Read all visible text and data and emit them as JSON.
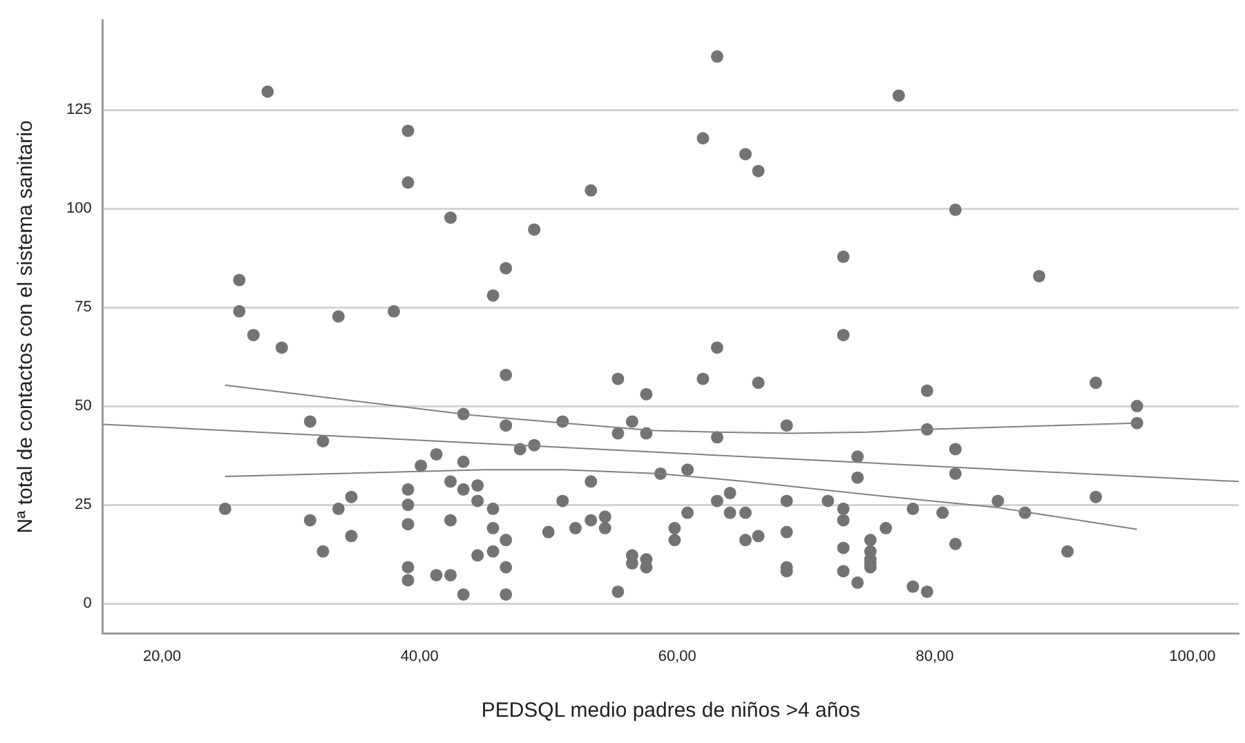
{
  "chart_data": {
    "type": "scatter",
    "xlabel": "PEDSQL medio padres de niños >4 años",
    "ylabel": "Nª total de contactos con el sistema sanitario",
    "xlim": [
      15.4,
      103.6
    ],
    "ylim": [
      -7.6,
      147.7
    ],
    "xticks": [
      {
        "value": 20,
        "label": "20,00"
      },
      {
        "value": 40,
        "label": "40,00"
      },
      {
        "value": 60,
        "label": "60,00"
      },
      {
        "value": 80,
        "label": "80,00"
      },
      {
        "value": 100,
        "label": "100,00"
      }
    ],
    "yticks": [
      0,
      25,
      50,
      75,
      100,
      125
    ],
    "grid": "y",
    "legend": false,
    "series": [
      {
        "marker": "circle",
        "color": "#737373",
        "x": [
          28.2,
          39.1,
          39.1,
          42.4,
          26.0,
          26.0,
          33.7,
          38.0,
          27.1,
          29.3,
          63.1,
          62.0,
          65.3,
          66.3,
          53.3,
          48.9,
          46.7,
          45.7,
          72.9,
          72.9,
          77.2,
          81.6,
          88.1,
          31.5,
          32.5,
          24.9,
          31.5,
          33.7,
          34.7,
          34.7,
          32.5,
          43.4,
          40.1,
          41.3,
          43.4,
          39.1,
          42.4,
          43.4,
          44.5,
          39.1,
          44.5,
          39.1,
          42.4,
          44.5,
          39.1,
          39.1,
          41.3,
          42.4,
          43.4,
          46.7,
          46.7,
          47.8,
          48.9,
          51.1,
          55.4,
          55.4,
          56.5,
          57.6,
          57.6,
          62.0,
          63.1,
          63.1,
          66.3,
          68.5,
          58.7,
          60.8,
          45.7,
          45.7,
          45.7,
          46.7,
          46.7,
          46.7,
          50.0,
          51.1,
          52.1,
          53.3,
          53.3,
          54.4,
          54.4,
          55.4,
          56.5,
          56.5,
          57.6,
          57.6,
          59.8,
          59.8,
          60.8,
          63.1,
          64.1,
          64.1,
          65.3,
          65.3,
          66.3,
          68.5,
          68.5,
          68.5,
          68.5,
          71.7,
          72.9,
          72.9,
          72.9,
          72.9,
          74.0,
          74.0,
          74.0,
          79.4,
          92.5,
          95.7,
          95.7,
          79.4,
          81.6,
          81.6,
          84.9,
          92.5,
          78.3,
          80.6,
          87.0,
          76.2,
          75.0,
          75.0,
          75.0,
          75.0,
          75.0,
          81.6,
          90.3,
          78.3,
          79.4
        ],
        "values": [
          129.6,
          119.7,
          106.6,
          97.7,
          81.9,
          74,
          72.7,
          74,
          68,
          64.8,
          138.5,
          117.8,
          113.8,
          109.5,
          104.6,
          94.7,
          84.9,
          78,
          87.8,
          68,
          128.6,
          99.7,
          82.9,
          46.1,
          41.1,
          24,
          21.1,
          24,
          27,
          17.1,
          13.2,
          48,
          34.9,
          37.8,
          35.9,
          28.9,
          30.9,
          28.9,
          29.9,
          25,
          26,
          20.1,
          21.1,
          12.2,
          9.2,
          5.9,
          7.2,
          7.2,
          2.3,
          57.9,
          45.1,
          39.1,
          40.1,
          46.1,
          56.9,
          43.1,
          46.1,
          53,
          43.1,
          56.9,
          64.8,
          42.1,
          55.9,
          45.1,
          32.9,
          33.9,
          24,
          19.1,
          13.2,
          16.1,
          9.2,
          2.3,
          18.1,
          26,
          19.1,
          30.9,
          21.1,
          22,
          19.1,
          3,
          12.2,
          10.2,
          11.2,
          9.2,
          19.1,
          16.1,
          23,
          26,
          28,
          23,
          23,
          16.1,
          17.1,
          26,
          18.1,
          9.2,
          8.2,
          26,
          24,
          21.1,
          14.1,
          8.2,
          37.2,
          31.9,
          5.3,
          53.9,
          55.9,
          50,
          45.7,
          44.1,
          39.1,
          32.9,
          26,
          27,
          24,
          23,
          23,
          19.1,
          16.1,
          13.2,
          11.2,
          10.2,
          9.2,
          15.1,
          13.2,
          4.3,
          3
        ]
      },
      {
        "type": "line",
        "marker": "none",
        "color": "#808080",
        "x": [
          15.4,
          103.6
        ],
        "values": [
          45.4,
          30.9
        ]
      },
      {
        "type": "line",
        "marker": "none",
        "color": "#808080",
        "x": [
          24.9,
          44.1,
          51.2,
          58.2,
          63.1,
          68.8,
          74.8,
          79.4,
          95.7
        ],
        "values": [
          55.3,
          47.7,
          45.7,
          43.8,
          43.4,
          43.1,
          43.4,
          44.1,
          45.7
        ]
      },
      {
        "type": "line",
        "marker": "none",
        "color": "#808080",
        "x": [
          24.9,
          45.1,
          51.2,
          58.7,
          65.3,
          74.8,
          84.9,
          95.7
        ],
        "values": [
          32.2,
          33.9,
          33.9,
          32.9,
          30.9,
          27.6,
          24.3,
          18.8
        ]
      }
    ]
  }
}
